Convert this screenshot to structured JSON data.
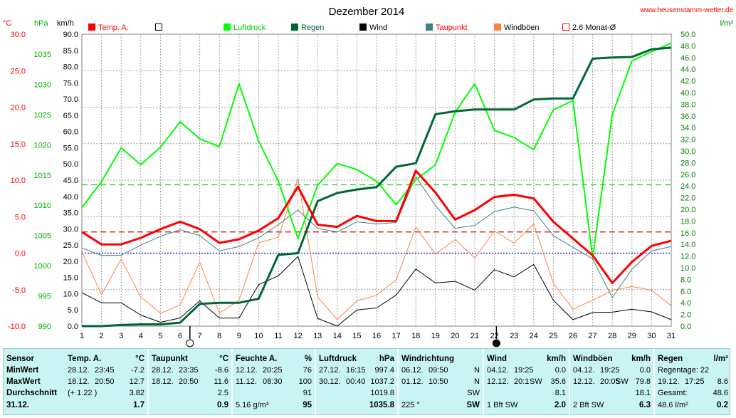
{
  "site": "www.heusenstamm-wetter.de",
  "chart_data": {
    "type": "line",
    "title": "Dezember 2014",
    "x": [
      1,
      2,
      3,
      4,
      5,
      6,
      7,
      8,
      9,
      10,
      11,
      12,
      13,
      14,
      15,
      16,
      17,
      18,
      19,
      20,
      21,
      22,
      23,
      24,
      25,
      26,
      27,
      28,
      29,
      30,
      31
    ],
    "axes": {
      "temp": {
        "label": "°C",
        "range": [
          -10,
          30
        ],
        "ticks": [
          "30.0",
          "25.0",
          "20.0",
          "15.0",
          "10.0",
          "5.0",
          "0.0",
          "-5.0",
          "-10.0"
        ],
        "color": "#ff0000"
      },
      "press": {
        "label": "hPa",
        "range": [
          990,
          1038.3
        ],
        "ticks": [
          "1035",
          "1030",
          "1025",
          "1020",
          "1015",
          "1010",
          "1005",
          "1000",
          "995",
          "990"
        ],
        "color": "#00b000"
      },
      "wind": {
        "label": "km/h",
        "range": [
          0,
          90
        ],
        "ticks": [
          "90.0",
          "85.0",
          "80.0",
          "75.0",
          "70.0",
          "65.0",
          "60.0",
          "55.0",
          "50.0",
          "45.0",
          "40.0",
          "35.0",
          "30.0",
          "25.0",
          "20.0",
          "15.0",
          "10.0",
          "5.0",
          "0.0"
        ],
        "color": "#000000"
      },
      "rain": {
        "label": "l/m²",
        "range": [
          0,
          50
        ],
        "ticks": [
          "50.0",
          "48.0",
          "46.0",
          "44.0",
          "42.0",
          "40.0",
          "38.0",
          "36.0",
          "34.0",
          "32.0",
          "30.0",
          "28.0",
          "26.0",
          "24.0",
          "22.0",
          "20.0",
          "18.0",
          "16.0",
          "14.0",
          "12.0",
          "10.0",
          "8.0",
          "6.0",
          "4.0",
          "2.0",
          "0.0"
        ],
        "color": "#008000"
      }
    },
    "legend": [
      {
        "name": "Temp. A.",
        "color": "#ff0000",
        "style": "filled"
      },
      {
        "name": "",
        "color": "#000000",
        "style": "box"
      },
      {
        "name": "Luftdruck",
        "color": "#00ff00",
        "style": "filled"
      },
      {
        "name": "Regen",
        "color": "#006633",
        "style": "filled"
      },
      {
        "name": "Wind",
        "color": "#000000",
        "style": "filled"
      },
      {
        "name": "Taupunkt",
        "color": "#408080",
        "style": "filled"
      },
      {
        "name": "Windböen",
        "color": "#ff8040",
        "style": "filled"
      },
      {
        "name": "2.6 Monat-Ø",
        "color": "#ff0000",
        "style": "box"
      }
    ],
    "series": [
      {
        "name": "Temp. A.",
        "axis": "temp",
        "color": "#ff0000",
        "width": 3,
        "values": [
          2.9,
          1.2,
          1.2,
          2.1,
          3.3,
          4.3,
          3.3,
          1.4,
          1.9,
          3.1,
          4.8,
          9.1,
          3.9,
          3.6,
          5.1,
          4.4,
          4.4,
          11.3,
          8.3,
          4.6,
          5.9,
          7.7,
          8.0,
          7.5,
          4.3,
          2.0,
          -0.3,
          -4.1,
          -1.2,
          1.0,
          1.7
        ]
      },
      {
        "name": "Taupunkt",
        "axis": "temp",
        "color": "#408080",
        "width": 1,
        "values": [
          0.7,
          -0.3,
          -0.3,
          1.1,
          2.3,
          3.2,
          2.4,
          0.3,
          0.9,
          2.1,
          3.9,
          5.9,
          3.4,
          2.9,
          4.3,
          4.0,
          4.2,
          10.5,
          6.5,
          3.4,
          3.8,
          5.7,
          6.3,
          5.8,
          2.4,
          0.8,
          -0.8,
          -6.1,
          -2.2,
          0.3,
          0.9
        ]
      },
      {
        "name": "Luftdruck",
        "axis": "press",
        "color": "#00ff00",
        "width": 2,
        "values": [
          1009.6,
          1013.9,
          1019.5,
          1016.7,
          1019.6,
          1023.8,
          1021.0,
          1019.7,
          1030.1,
          1020.6,
          1014.0,
          1004.5,
          1013.3,
          1016.9,
          1015.9,
          1014.0,
          1010.1,
          1014.2,
          1016.7,
          1025.4,
          1030.1,
          1022.4,
          1021.2,
          1019.2,
          1025.8,
          1027.3,
          1001.3,
          1025.0,
          1033.9,
          1035.4,
          1036.8
        ]
      },
      {
        "name": "Regen",
        "axis": "rain",
        "color": "#006633",
        "width": 3,
        "values": [
          0.0,
          0.0,
          0.2,
          0.3,
          0.3,
          0.6,
          3.8,
          4.0,
          4.0,
          4.7,
          12.2,
          12.5,
          21.4,
          22.8,
          23.4,
          23.8,
          27.3,
          27.9,
          36.3,
          36.8,
          37.1,
          37.1,
          37.1,
          38.8,
          39.0,
          39.0,
          45.8,
          46.0,
          46.1,
          47.4,
          47.7
        ]
      },
      {
        "name": "Wind",
        "axis": "wind",
        "color": "#000000",
        "width": 1,
        "values": [
          10.3,
          7.2,
          7.2,
          3.4,
          1.2,
          2.5,
          7.8,
          2.5,
          2.5,
          12.8,
          15.5,
          21.5,
          2.4,
          0.0,
          5.0,
          5.6,
          9.6,
          17.6,
          13.3,
          13.8,
          11.1,
          17.4,
          15.2,
          19.0,
          8.0,
          2.0,
          4.2,
          4.3,
          5.2,
          4.4,
          2.0
        ]
      },
      {
        "name": "Windböen",
        "axis": "wind",
        "color": "#ff8040",
        "width": 1,
        "values": [
          23.0,
          9.7,
          20.7,
          9.0,
          4.0,
          6.5,
          19.7,
          4.0,
          8.0,
          25.7,
          27.4,
          45.5,
          9.0,
          2.0,
          7.8,
          9.5,
          14.3,
          30.5,
          22.2,
          26.7,
          21.0,
          29.3,
          25.6,
          31.5,
          13.2,
          5.2,
          8.0,
          11.0,
          12.2,
          11.1,
          6.3
        ]
      }
    ],
    "reference_lines": [
      {
        "axis": "temp",
        "value": 2.9,
        "color": "#cc0000",
        "style": "dashed"
      },
      {
        "axis": "temp",
        "value": 0.0,
        "color": "#0000ff",
        "style": "dotted"
      },
      {
        "axis": "rain",
        "value": 24.2,
        "color": "#00cc00",
        "style": "dashed"
      }
    ],
    "moon_markers": [
      {
        "day": 6.5,
        "phase": "full"
      },
      {
        "day": 22.1,
        "phase": "new"
      }
    ],
    "grid": true
  },
  "stats": {
    "row_labels": {
      "title": "Sensor",
      "min": "MinWert",
      "max": "MaxWert",
      "avg": "Durchschnitt",
      "date": "31.12."
    },
    "columns": [
      {
        "title": "Temp. A.",
        "unit": "°C",
        "min_date": "28.12.",
        "min_time": "23:45",
        "min_val": "-7.2",
        "max_date": "18.12.",
        "max_time": "20:50",
        "max_val": "12.7",
        "avg_extra": "(+ 1.22 )",
        "avg": "3.82",
        "current": "1.7"
      },
      {
        "title": "Taupunkt",
        "unit": "°C",
        "min_date": "28.12.",
        "min_time": "23:35",
        "min_val": "-8.6",
        "max_date": "18.12.",
        "max_time": "20:50",
        "max_val": "11.6",
        "avg_extra": "",
        "avg": "2.5",
        "current": "0.9"
      },
      {
        "title": "Feuchte A.",
        "unit": "%",
        "min_date": "12.12.",
        "min_time": "20:25",
        "min_val": "76",
        "max_date": "11.12.",
        "max_time": "08:30",
        "max_val": "100",
        "avg_extra": "",
        "avg": "91",
        "current_extra": "5.16 g/m³",
        "current": "95"
      },
      {
        "title": "Luftdruck",
        "unit": "hPa",
        "min_date": "27.12.",
        "min_time": "16:15",
        "min_val": "997.4",
        "max_date": "30.12.",
        "max_time": "00:40",
        "max_val": "1037.2",
        "avg_extra": "",
        "avg": "1019.8",
        "current": "1035.8"
      },
      {
        "title": "Windrichtung",
        "unit": "",
        "min_date": "06.12.",
        "min_time": "09:50",
        "min_val": "N",
        "max_date": "01.12.",
        "max_time": "10:50",
        "max_val": "N",
        "avg_extra": "",
        "avg": "SW",
        "current_extra": "225 °",
        "current": "SW"
      },
      {
        "title": "Wind",
        "unit": "km/h",
        "min_date": "04.12.",
        "min_time": "19:25",
        "min_val": "0.0",
        "max_date": "12.12.",
        "max_time": "20:1",
        "max_extra": "SW",
        "max_val": "35.6",
        "avg_extra": "",
        "avg": "8.1",
        "current_extra": "1 Bft SW",
        "current": "2.0"
      },
      {
        "title": "Windböen",
        "unit": "km/h",
        "min_date": "04.12.",
        "min_time": "19:25",
        "min_val": "0.0",
        "max_date": "12.12.",
        "max_time": "20:05",
        "max_extra": "SW",
        "max_val": "79.8",
        "avg_extra": "",
        "avg": "18.1",
        "current_extra": "2 Bft SW",
        "current": "6.3"
      },
      {
        "title": "Regen",
        "unit": "l/m²",
        "min_date": "Regentage: 22",
        "min_time": "",
        "min_val": "",
        "max_date": "19.12.",
        "max_time": "17:25",
        "max_val": "8.6",
        "avg_extra": "Gesamt:",
        "avg": "48.6",
        "current_extra": "48.6 l/m²",
        "current": "0.2"
      }
    ]
  }
}
